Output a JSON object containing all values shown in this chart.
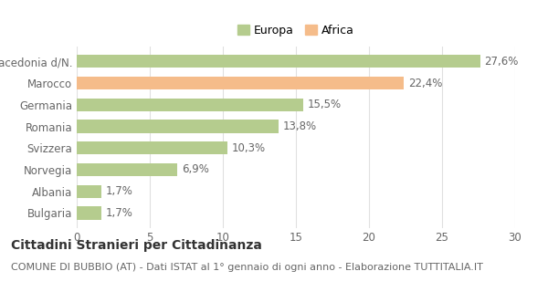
{
  "categories": [
    "Macedonia d/N.",
    "Marocco",
    "Germania",
    "Romania",
    "Svizzera",
    "Norvegia",
    "Albania",
    "Bulgaria"
  ],
  "values": [
    27.6,
    22.4,
    15.5,
    13.8,
    10.3,
    6.9,
    1.7,
    1.7
  ],
  "colors": [
    "#b5cc8e",
    "#f5bc8a",
    "#b5cc8e",
    "#b5cc8e",
    "#b5cc8e",
    "#b5cc8e",
    "#b5cc8e",
    "#b5cc8e"
  ],
  "labels": [
    "27,6%",
    "22,4%",
    "15,5%",
    "13,8%",
    "10,3%",
    "6,9%",
    "1,7%",
    "1,7%"
  ],
  "legend_entries": [
    "Europa",
    "Africa"
  ],
  "legend_colors": [
    "#b5cc8e",
    "#f5bc8a"
  ],
  "title": "Cittadini Stranieri per Cittadinanza",
  "subtitle": "COMUNE DI BUBBIO (AT) - Dati ISTAT al 1° gennaio di ogni anno - Elaborazione TUTTITALIA.IT",
  "xlim": [
    0,
    30
  ],
  "xticks": [
    0,
    5,
    10,
    15,
    20,
    25,
    30
  ],
  "background_color": "#ffffff",
  "bar_edge_color": "none",
  "grid_color": "#e0e0e0",
  "title_fontsize": 10,
  "subtitle_fontsize": 8,
  "label_fontsize": 8.5,
  "tick_fontsize": 8.5,
  "legend_fontsize": 9
}
